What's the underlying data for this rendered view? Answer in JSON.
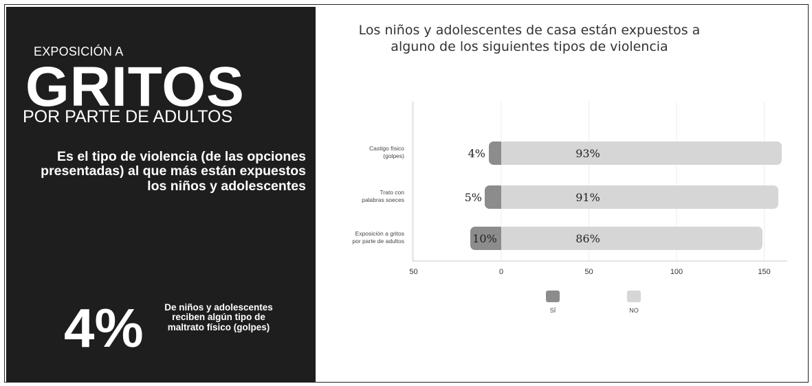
{
  "left_panel": {
    "eyebrow": "EXPOSICIÓN A",
    "headline": "GRITOS",
    "subheadline": "POR PARTE DE ADULTOS",
    "description": "Es el tipo de violencia (de las opciones presentadas) al que más están expuestos los niños y adolescentes",
    "stat_value": "4%",
    "stat_text": "De niños y adolescentes reciben algún tipo de maltrato físico (golpes)"
  },
  "chart_data": {
    "type": "bar",
    "orientation": "horizontal",
    "title": "Los niños y adolescentes de casa están expuestos a alguno de los siguientes tipos de violencia",
    "categories": [
      [
        "Castigo físico",
        "(golpes)"
      ],
      [
        "Trato con",
        "palabras soeces"
      ],
      [
        "Exposición a gritos",
        "por parte de adultos"
      ]
    ],
    "series": [
      {
        "name": "SÍ",
        "values": [
          4,
          5,
          10
        ],
        "labels": [
          "4%",
          "5%",
          "10%"
        ],
        "color": "#8c8c8c",
        "direction": "negative"
      },
      {
        "name": "NO",
        "values": [
          93,
          91,
          86
        ],
        "labels": [
          "93%",
          "91%",
          "86%"
        ],
        "color": "#d6d6d6",
        "direction": "positive"
      }
    ],
    "x_ticks": [
      {
        "value": -50,
        "label": "50"
      },
      {
        "value": 0,
        "label": "0"
      },
      {
        "value": 50,
        "label": "50"
      },
      {
        "value": 100,
        "label": "100"
      },
      {
        "value": 150,
        "label": "150"
      }
    ],
    "xlim": [
      -50,
      160
    ],
    "grid": "vertical",
    "legend_position": "bottom"
  },
  "colors": {
    "panel_bg": "#1e1e1e",
    "panel_text": "#ffffff",
    "si": "#8c8c8c",
    "no": "#d6d6d6",
    "label_text": "#333333"
  }
}
